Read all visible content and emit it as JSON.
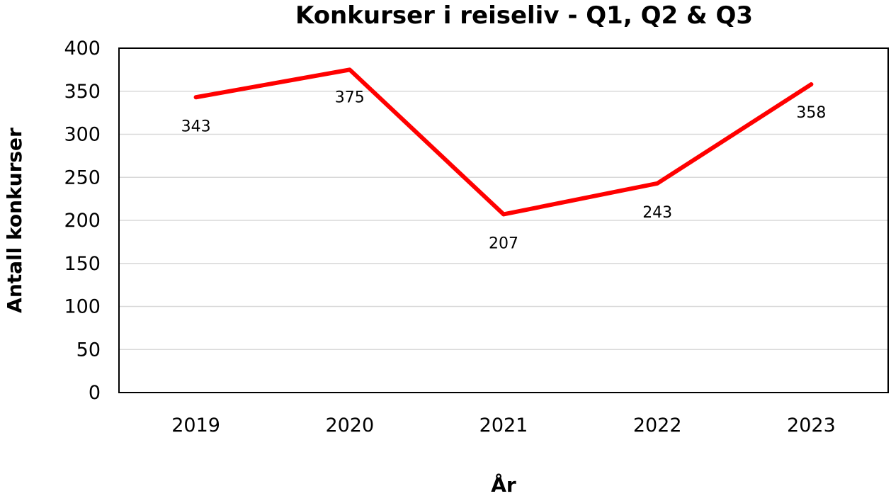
{
  "chart_data": {
    "type": "line",
    "title": "Konkurser i reiseliv - Q1, Q2 & Q3",
    "xlabel": "År",
    "ylabel": "Antall konkurser",
    "categories": [
      "2019",
      "2020",
      "2021",
      "2022",
      "2023"
    ],
    "series": [
      {
        "values": [
          343,
          375,
          207,
          243,
          358
        ],
        "color": "#ff0000"
      }
    ],
    "ylim": [
      0,
      400
    ],
    "yticks": [
      0,
      50,
      100,
      150,
      200,
      250,
      300,
      350,
      400
    ],
    "grid": true,
    "data_labels": [
      "343",
      "375",
      "207",
      "243",
      "358"
    ],
    "legend": "none"
  }
}
